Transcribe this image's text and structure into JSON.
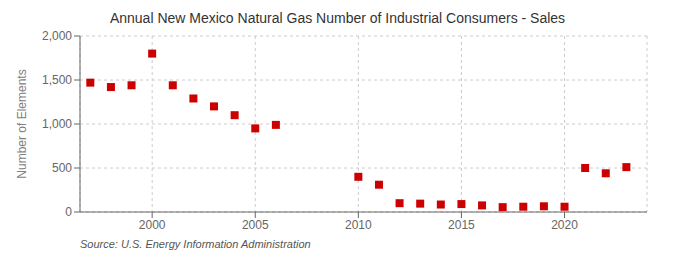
{
  "chart_data": {
    "type": "scatter",
    "title": "Annual New Mexico Natural Gas Number of Industrial Consumers - Sales",
    "ylabel": "Number of Elements",
    "annotations": [
      "Source: U.S. Energy Information Administration"
    ],
    "x": [
      1997,
      1998,
      1999,
      2000,
      2001,
      2002,
      2003,
      2004,
      2005,
      2006,
      2010,
      2011,
      2012,
      2013,
      2014,
      2015,
      2016,
      2017,
      2018,
      2019,
      2020,
      2021,
      2022,
      2023
    ],
    "values": [
      1470,
      1420,
      1440,
      1800,
      1440,
      1290,
      1200,
      1100,
      950,
      990,
      400,
      310,
      100,
      95,
      85,
      90,
      75,
      55,
      60,
      65,
      60,
      500,
      440,
      510
    ],
    "color": "#cc0000",
    "marker": "square",
    "grid": true,
    "xlim": [
      1996.5,
      2024
    ],
    "xticks": [
      2000,
      2005,
      2010,
      2015,
      2020
    ],
    "ylim": [
      0,
      2000
    ],
    "yticks": [
      0,
      500,
      {
        "value": 1000,
        "label": "1,000"
      },
      {
        "value": 1500,
        "label": "1,500"
      },
      {
        "value": 2000,
        "label": "2,000"
      }
    ]
  }
}
